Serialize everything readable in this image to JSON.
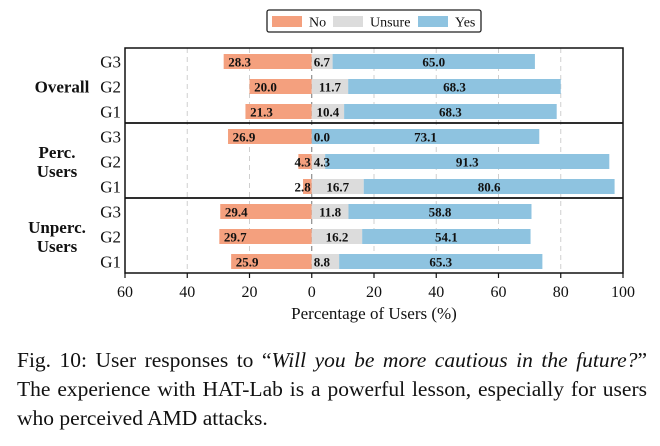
{
  "chart_data": {
    "type": "bar",
    "orientation": "horizontal-diverging-stacked",
    "title": "",
    "xlabel": "Percentage of Users (%)",
    "ylabel": "",
    "xlim": [
      -60,
      100
    ],
    "xticks": [
      -60,
      -40,
      -20,
      0,
      20,
      40,
      60,
      80,
      100
    ],
    "xtick_labels": [
      "60",
      "40",
      "20",
      "0",
      "20",
      "40",
      "60",
      "80",
      "100"
    ],
    "grid": "vertical dashed",
    "legend": {
      "placement": "top-center",
      "entries": [
        {
          "name": "No",
          "color": "#F4A07E"
        },
        {
          "name": "Unsure",
          "color": "#DCDCDC"
        },
        {
          "name": "Yes",
          "color": "#8EC3E0"
        }
      ]
    },
    "groups": [
      {
        "label_lines": [
          "Overall"
        ],
        "rows": [
          {
            "label": "G3",
            "No": 28.3,
            "Unsure": 6.7,
            "Yes": 65.0
          },
          {
            "label": "G2",
            "No": 20.0,
            "Unsure": 11.7,
            "Yes": 68.3
          },
          {
            "label": "G1",
            "No": 21.3,
            "Unsure": 10.4,
            "Yes": 68.3
          }
        ]
      },
      {
        "label_lines": [
          "Perc.",
          "Users"
        ],
        "rows": [
          {
            "label": "G3",
            "No": 26.9,
            "Unsure": 0.0,
            "Yes": 73.1
          },
          {
            "label": "G2",
            "No": 4.3,
            "Unsure": 4.3,
            "Yes": 91.3
          },
          {
            "label": "G1",
            "No": 2.8,
            "Unsure": 16.7,
            "Yes": 80.6
          }
        ]
      },
      {
        "label_lines": [
          "Unperc.",
          "Users"
        ],
        "rows": [
          {
            "label": "G3",
            "No": 29.4,
            "Unsure": 11.8,
            "Yes": 58.8
          },
          {
            "label": "G2",
            "No": 29.7,
            "Unsure": 16.2,
            "Yes": 54.1
          },
          {
            "label": "G1",
            "No": 25.9,
            "Unsure": 8.8,
            "Yes": 65.3
          }
        ]
      }
    ]
  },
  "caption": {
    "prefix": "Fig. 10: User responses to “",
    "question": "Will you be more cautious in the future?",
    "suffix": "” The experience with HAT-Lab is a powerful lesson, especially for users who perceived AMD attacks."
  }
}
